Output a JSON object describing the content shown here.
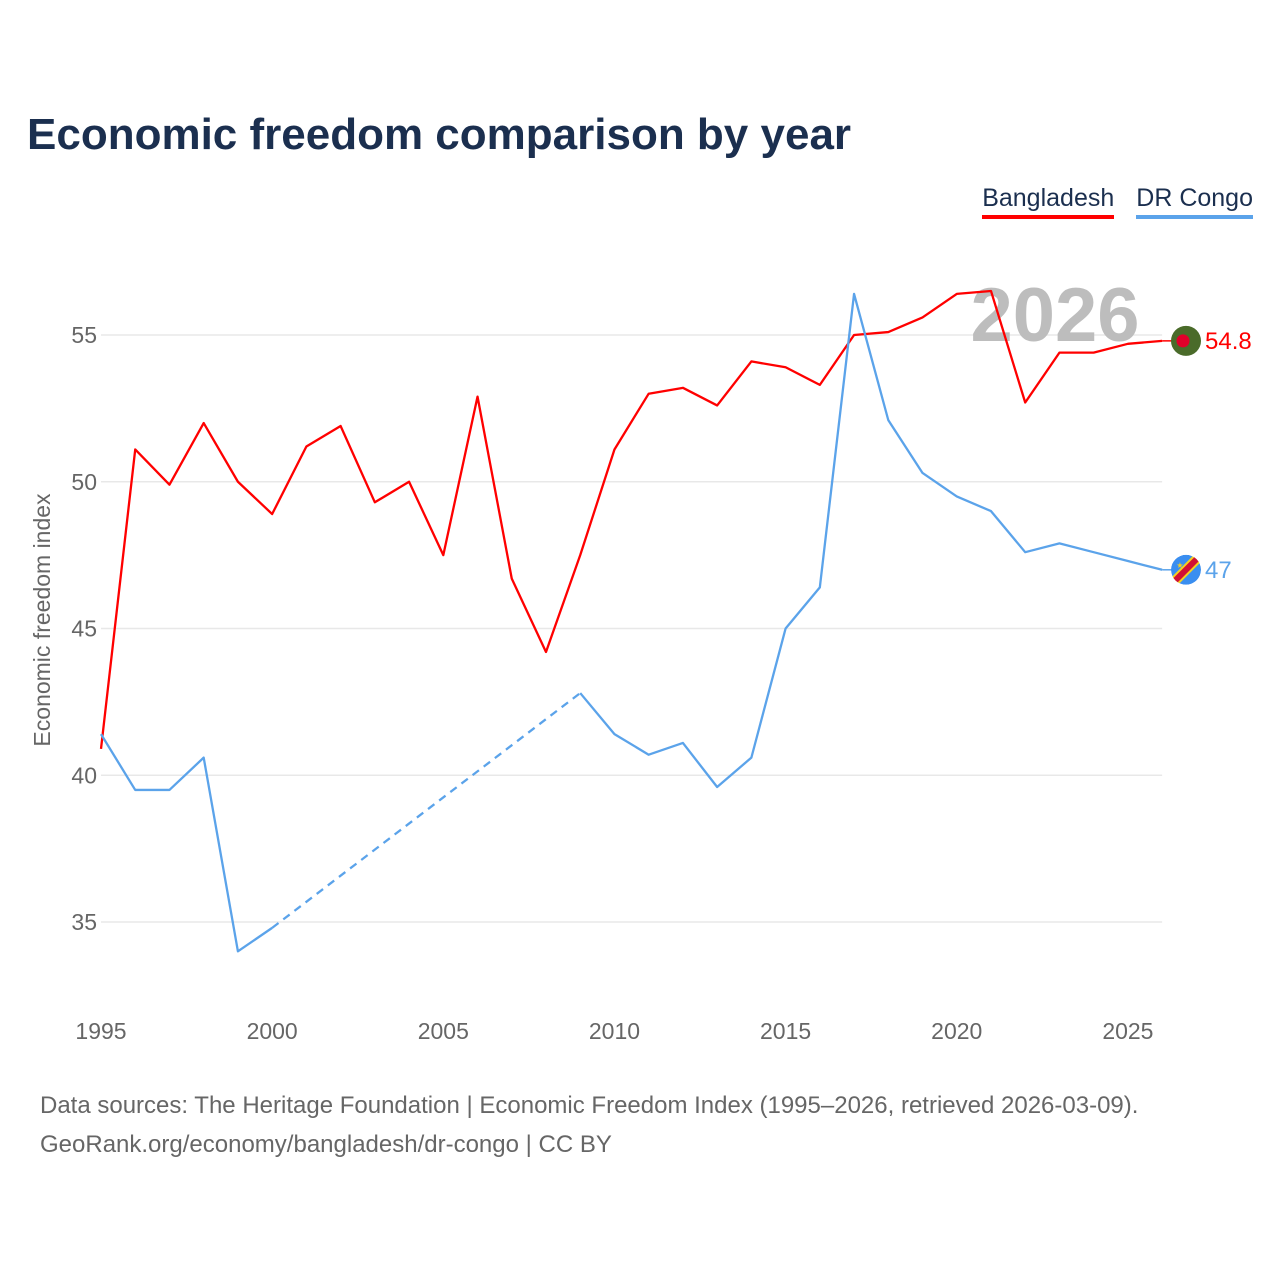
{
  "title": "Economic freedom comparison by year",
  "legend": [
    {
      "label": "Bangladesh",
      "color": "#ff0000"
    },
    {
      "label": "DR Congo",
      "color": "#5ba3ea"
    }
  ],
  "footer": {
    "line1": "Data sources: The Heritage Foundation | Economic Freedom Index (1995–2026, retrieved 2026-03-09).",
    "line2": "GeoRank.org/economy/bangladesh/dr-congo | CC BY"
  },
  "chart_data": {
    "type": "line",
    "title": "Economic freedom comparison by year",
    "xlabel": "",
    "ylabel": "Economic freedom index",
    "watermark_year": "2026",
    "x": [
      1995,
      1996,
      1997,
      1998,
      1999,
      2000,
      2001,
      2002,
      2003,
      2004,
      2005,
      2006,
      2007,
      2008,
      2009,
      2010,
      2011,
      2012,
      2013,
      2014,
      2015,
      2016,
      2017,
      2018,
      2019,
      2020,
      2021,
      2022,
      2023,
      2024,
      2025,
      2026
    ],
    "xlim": [
      1995,
      2026
    ],
    "ylim": [
      32.6,
      58
    ],
    "xticks": [
      1995,
      2000,
      2005,
      2010,
      2015,
      2020,
      2025
    ],
    "yticks": [
      35,
      40,
      45,
      50,
      55
    ],
    "grid": true,
    "legend_position": "top-right",
    "series": [
      {
        "name": "Bangladesh",
        "color": "#ff0000",
        "end_label": "54.8",
        "values": [
          40.9,
          51.1,
          49.9,
          52.0,
          50.0,
          48.9,
          51.2,
          51.9,
          49.3,
          50.0,
          47.5,
          52.9,
          46.7,
          44.2,
          47.5,
          51.1,
          53.0,
          53.2,
          52.6,
          54.1,
          53.9,
          53.3,
          55.0,
          55.1,
          55.6,
          56.4,
          56.5,
          52.7,
          54.4,
          54.4,
          54.7,
          54.8
        ]
      },
      {
        "name": "DR Congo",
        "color": "#5ba3ea",
        "end_label": "47",
        "values": [
          41.4,
          39.5,
          39.5,
          40.6,
          34.0,
          34.8,
          null,
          null,
          null,
          null,
          null,
          null,
          null,
          null,
          42.8,
          41.4,
          40.7,
          41.1,
          39.6,
          40.6,
          45.0,
          46.4,
          56.4,
          52.1,
          50.3,
          49.5,
          49.0,
          47.6,
          47.9,
          47.6,
          47.3,
          47.0
        ]
      }
    ]
  }
}
